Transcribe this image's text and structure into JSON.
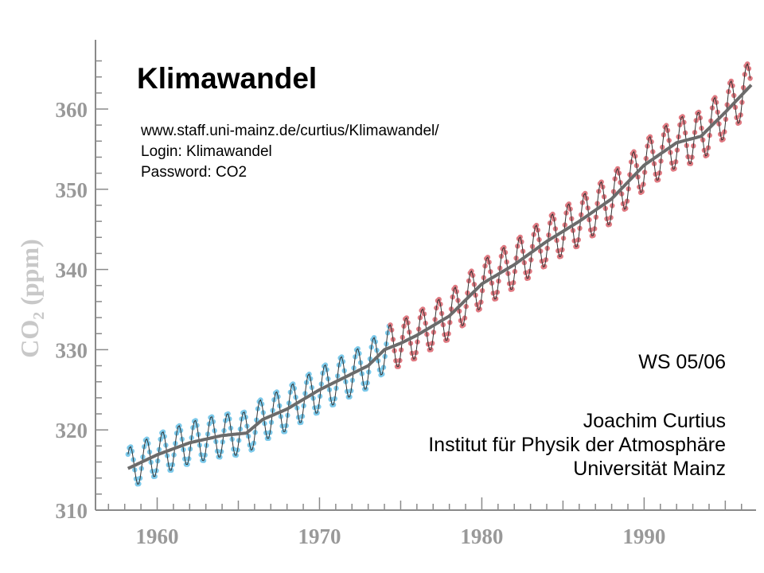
{
  "slide": {
    "title": "Klimawandel",
    "url": "www.staff.uni-mainz.de/curtius/Klimawandel/",
    "login": "Login: Klimawandel",
    "password": "Password: CO2",
    "semester": "WS 05/06",
    "author": "Joachim Curtius",
    "institute": "Institut für Physik der Atmosphäre",
    "university": "Universität Mainz"
  },
  "chart_data": {
    "type": "line",
    "ylabel_main": "CO",
    "ylabel_sub": "2",
    "ylabel_unit": " (ppm)",
    "xlim": [
      1956.2,
      1996.6
    ],
    "ylim": [
      310,
      368
    ],
    "x_ticks": [
      1960,
      1970,
      1980,
      1990
    ],
    "y_ticks": [
      310,
      320,
      330,
      340,
      350,
      360
    ],
    "x_tick_labels": [
      "1960",
      "1970",
      "1980",
      "1990"
    ],
    "y_tick_labels": [
      "310",
      "320",
      "330",
      "340",
      "350",
      "360"
    ],
    "colors": {
      "early": "#7cc9ea",
      "late": "#e07a82",
      "trend": "#6b6b6b",
      "monthly": "#333333",
      "axis": "#8a8a8a",
      "tick_label": "#999999",
      "ylabel": "#c8c8c8"
    },
    "trend_anchors": [
      [
        1958.0,
        315.0
      ],
      [
        1960.0,
        316.9
      ],
      [
        1962.0,
        318.4
      ],
      [
        1964.0,
        319.3
      ],
      [
        1965.5,
        319.6
      ],
      [
        1966.5,
        321.3
      ],
      [
        1968.0,
        322.6
      ],
      [
        1970.0,
        325.0
      ],
      [
        1972.0,
        327.0
      ],
      [
        1973.0,
        328.0
      ],
      [
        1974.0,
        330.0
      ],
      [
        1975.0,
        330.8
      ],
      [
        1976.0,
        331.8
      ],
      [
        1978.0,
        334.2
      ],
      [
        1980.0,
        338.2
      ],
      [
        1982.0,
        340.6
      ],
      [
        1984.0,
        343.5
      ],
      [
        1986.0,
        346.0
      ],
      [
        1988.0,
        348.8
      ],
      [
        1990.0,
        353.0
      ],
      [
        1992.0,
        355.8
      ],
      [
        1993.5,
        356.6
      ],
      [
        1995.0,
        359.6
      ],
      [
        1996.6,
        363.0
      ]
    ],
    "seasonal_amplitude": 2.6,
    "series": [
      {
        "name": "early",
        "x_range": [
          1958.2,
          1974.3
        ]
      },
      {
        "name": "late",
        "x_range": [
          1974.3,
          1996.6
        ]
      }
    ]
  }
}
